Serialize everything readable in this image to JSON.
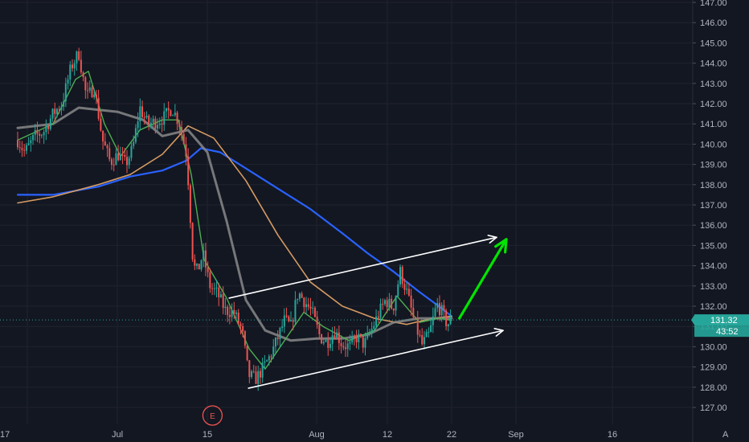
{
  "chart_data": {
    "type": "candlestick",
    "title": "",
    "xlabel": "",
    "ylabel": "",
    "ylim": [
      126.5,
      147.2
    ],
    "grid": true,
    "x_axis": {
      "ticks": [
        {
          "label": "17",
          "day": -14
        },
        {
          "label": "Jul",
          "day": 0
        },
        {
          "label": "15",
          "day": 14
        },
        {
          "label": "Aug",
          "day": 31
        },
        {
          "label": "12",
          "day": 42
        },
        {
          "label": "22",
          "day": 52
        },
        {
          "label": "Sep",
          "day": 62
        },
        {
          "label": "16",
          "day": 77
        }
      ]
    },
    "y_axis": {
      "ticks": [
        127,
        128,
        129,
        130,
        131,
        132,
        133,
        134,
        135,
        136,
        137,
        138,
        139,
        140,
        141,
        142,
        143,
        144,
        145,
        146,
        147
      ],
      "tick_labels": [
        "127.00",
        "128.00",
        "129.00",
        "130.00",
        "131.00",
        "132.00",
        "133.00",
        "134.00",
        "135.00",
        "136.00",
        "137.00",
        "138.00",
        "139.00",
        "140.00",
        "141.00",
        "142.00",
        "143.00",
        "144.00",
        "145.00",
        "146.00",
        "147.00"
      ]
    },
    "last_price": {
      "value": 131.32,
      "label": "131.32",
      "countdown": "43:52"
    },
    "price_path": [
      {
        "day": -15.5,
        "price": 140.2
      },
      {
        "day": -14.4,
        "price": 139.6
      },
      {
        "day": -12.8,
        "price": 140.4
      },
      {
        "day": -11.5,
        "price": 140.6
      },
      {
        "day": -10,
        "price": 141.5
      },
      {
        "day": -8.6,
        "price": 142
      },
      {
        "day": -7.2,
        "price": 143.8
      },
      {
        "day": -6,
        "price": 144.5
      },
      {
        "day": -4.8,
        "price": 142.3
      },
      {
        "day": -3.6,
        "price": 142.8
      },
      {
        "day": -2.3,
        "price": 140.2
      },
      {
        "day": -1.1,
        "price": 139.1
      },
      {
        "day": 0.1,
        "price": 139.5
      },
      {
        "day": 1.3,
        "price": 139
      },
      {
        "day": 2.4,
        "price": 139.8
      },
      {
        "day": 3.5,
        "price": 141.8
      },
      {
        "day": 4.7,
        "price": 141
      },
      {
        "day": 5.9,
        "price": 141.1
      },
      {
        "day": 7.2,
        "price": 141.3
      },
      {
        "day": 8.5,
        "price": 141.8
      },
      {
        "day": 9.7,
        "price": 141
      },
      {
        "day": 10.8,
        "price": 139.4
      },
      {
        "day": 11.8,
        "price": 134
      },
      {
        "day": 12.5,
        "price": 133.7
      },
      {
        "day": 13.3,
        "price": 134.6
      },
      {
        "day": 14.4,
        "price": 133
      },
      {
        "day": 15.6,
        "price": 132.6
      },
      {
        "day": 16.8,
        "price": 131.8
      },
      {
        "day": 18.1,
        "price": 131.7
      },
      {
        "day": 19.4,
        "price": 130.8
      },
      {
        "day": 20.4,
        "price": 128.6
      },
      {
        "day": 21.5,
        "price": 128.4
      },
      {
        "day": 22.6,
        "price": 128.9
      },
      {
        "day": 23.7,
        "price": 129.5
      },
      {
        "day": 24.8,
        "price": 130.3
      },
      {
        "day": 26,
        "price": 131.3
      },
      {
        "day": 27,
        "price": 131
      },
      {
        "day": 28.1,
        "price": 132.7
      },
      {
        "day": 29.2,
        "price": 132.2
      },
      {
        "day": 30.3,
        "price": 131.7
      },
      {
        "day": 31.5,
        "price": 130.5
      },
      {
        "day": 32.6,
        "price": 130.2
      },
      {
        "day": 33.8,
        "price": 130.8
      },
      {
        "day": 35,
        "price": 130.1
      },
      {
        "day": 36.2,
        "price": 130
      },
      {
        "day": 37.3,
        "price": 130.5
      },
      {
        "day": 38.4,
        "price": 130.1
      },
      {
        "day": 39.5,
        "price": 130.8
      },
      {
        "day": 40.6,
        "price": 131.6
      },
      {
        "day": 41.7,
        "price": 132.3
      },
      {
        "day": 42.9,
        "price": 131.9
      },
      {
        "day": 44,
        "price": 133.7
      },
      {
        "day": 45.1,
        "price": 132.6
      },
      {
        "day": 46.2,
        "price": 131.2
      },
      {
        "day": 47.4,
        "price": 130.1
      },
      {
        "day": 48.5,
        "price": 130.6
      },
      {
        "day": 49.7,
        "price": 132.1
      },
      {
        "day": 50.5,
        "price": 131.7
      },
      {
        "day": 51.3,
        "price": 131.1
      },
      {
        "day": 52,
        "price": 131.32
      }
    ],
    "series": [
      {
        "name": "",
        "color": "#2962ff",
        "values": [
          {
            "day": -15.5,
            "price": 137.5
          },
          {
            "day": -10,
            "price": 137.5
          },
          {
            "day": -3,
            "price": 137.9
          },
          {
            "day": 2,
            "price": 138.4
          },
          {
            "day": 7,
            "price": 138.7
          },
          {
            "day": 10.8,
            "price": 139.2
          },
          {
            "day": 13,
            "price": 139.8
          },
          {
            "day": 16,
            "price": 139.6
          },
          {
            "day": 20,
            "price": 138.8
          },
          {
            "day": 25,
            "price": 137.8
          },
          {
            "day": 30,
            "price": 136.8
          },
          {
            "day": 35,
            "price": 135.6
          },
          {
            "day": 39,
            "price": 134.6
          },
          {
            "day": 43,
            "price": 133.7
          },
          {
            "day": 47,
            "price": 132.7
          },
          {
            "day": 50,
            "price": 132
          },
          {
            "day": 52,
            "price": 131.5
          }
        ]
      },
      {
        "name": "",
        "color": "#d59b62",
        "values": [
          {
            "day": -15.5,
            "price": 137.1
          },
          {
            "day": -10,
            "price": 137.4
          },
          {
            "day": -3,
            "price": 138
          },
          {
            "day": 2,
            "price": 138.5
          },
          {
            "day": 7,
            "price": 139.5
          },
          {
            "day": 11,
            "price": 140.9
          },
          {
            "day": 15,
            "price": 140.3
          },
          {
            "day": 20,
            "price": 138.2
          },
          {
            "day": 25,
            "price": 135.5
          },
          {
            "day": 30,
            "price": 133.2
          },
          {
            "day": 35,
            "price": 132
          },
          {
            "day": 40,
            "price": 131.4
          },
          {
            "day": 45,
            "price": 131.1
          },
          {
            "day": 49,
            "price": 131.4
          },
          {
            "day": 52,
            "price": 131.5
          }
        ]
      },
      {
        "name": "",
        "color": "#888888",
        "values": [
          {
            "day": -15.5,
            "price": 140.8
          },
          {
            "day": -10,
            "price": 141
          },
          {
            "day": -6,
            "price": 141.8
          },
          {
            "day": -3,
            "price": 141.7
          },
          {
            "day": 0,
            "price": 141.6
          },
          {
            "day": 4,
            "price": 141.2
          },
          {
            "day": 7,
            "price": 140.4
          },
          {
            "day": 11,
            "price": 140.7
          },
          {
            "day": 14,
            "price": 139.6
          },
          {
            "day": 17,
            "price": 136.2
          },
          {
            "day": 20,
            "price": 132.3
          },
          {
            "day": 23,
            "price": 130.8
          },
          {
            "day": 27,
            "price": 130.3
          },
          {
            "day": 31,
            "price": 130.4
          },
          {
            "day": 35,
            "price": 130.4
          },
          {
            "day": 39,
            "price": 130.6
          },
          {
            "day": 43,
            "price": 131.2
          },
          {
            "day": 47,
            "price": 131.4
          },
          {
            "day": 52,
            "price": 131.4
          }
        ]
      },
      {
        "name": "",
        "color": "#4caf50",
        "values": [
          {
            "day": -15.5,
            "price": 140.2
          },
          {
            "day": -10,
            "price": 141
          },
          {
            "day": -6.5,
            "price": 143.2
          },
          {
            "day": -4.5,
            "price": 143.6
          },
          {
            "day": -2,
            "price": 141
          },
          {
            "day": 0.5,
            "price": 139.4
          },
          {
            "day": 3.5,
            "price": 140.7
          },
          {
            "day": 7,
            "price": 141.2
          },
          {
            "day": 9.5,
            "price": 141.2
          },
          {
            "day": 11.5,
            "price": 138.5
          },
          {
            "day": 13.5,
            "price": 134.3
          },
          {
            "day": 17,
            "price": 132.4
          },
          {
            "day": 20.5,
            "price": 129.9
          },
          {
            "day": 23,
            "price": 128.9
          },
          {
            "day": 26,
            "price": 130.3
          },
          {
            "day": 29,
            "price": 131.7
          },
          {
            "day": 32,
            "price": 131
          },
          {
            "day": 36,
            "price": 130.3
          },
          {
            "day": 40,
            "price": 130.8
          },
          {
            "day": 43.5,
            "price": 132.5
          },
          {
            "day": 47,
            "price": 131.2
          },
          {
            "day": 50,
            "price": 131.4
          },
          {
            "day": 52,
            "price": 131.3
          }
        ]
      }
    ],
    "channel": {
      "upper": {
        "start": {
          "day": 17.4,
          "price": 132.4
        },
        "end": {
          "day": 59,
          "price": 135.4
        }
      },
      "lower": {
        "start": {
          "day": 20.4,
          "price": 127.95
        },
        "end": {
          "day": 60,
          "price": 130.8
        }
      },
      "color": "#ffffff"
    },
    "projection_arrow": {
      "start": {
        "day": 53.2,
        "price": 131.4
      },
      "end": {
        "day": 60.5,
        "price": 135.3
      },
      "color": "#00e600"
    },
    "annotations": [
      {
        "text": "E",
        "day": 14.8,
        "marker": "earnings"
      }
    ],
    "colors": {
      "background": "#131722",
      "grid": "#20232e",
      "up": "#26a69a",
      "down": "#ef5350",
      "last_price": "#26a69a"
    },
    "corner_label": "A"
  }
}
